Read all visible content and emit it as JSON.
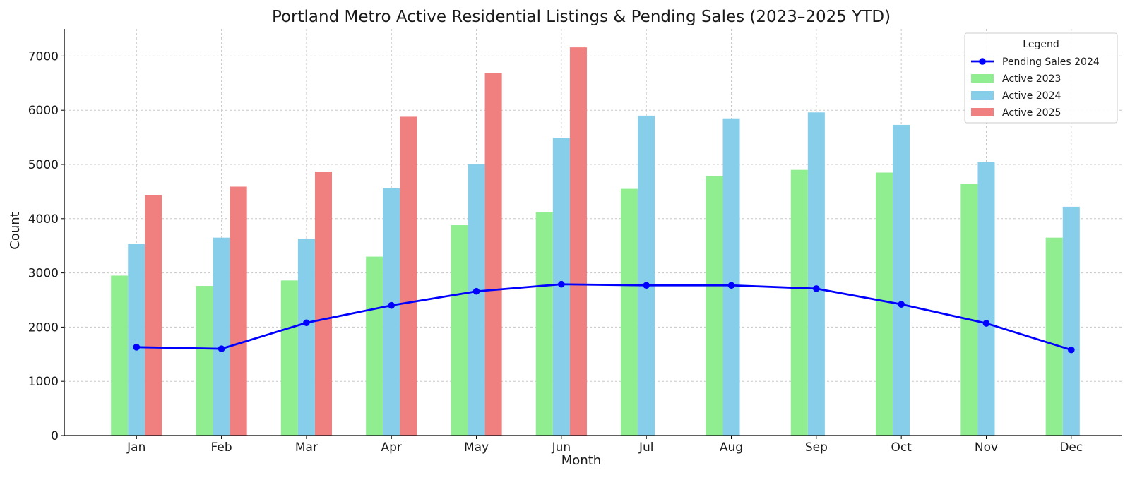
{
  "chart_data": {
    "type": "bar",
    "title": "Portland Metro Active Residential Listings & Pending Sales (2023–2025 YTD)",
    "xlabel": "Month",
    "ylabel": "Count",
    "ylim": [
      0,
      7500
    ],
    "yticks": [
      0,
      1000,
      2000,
      3000,
      4000,
      5000,
      6000,
      7000
    ],
    "grid": true,
    "legend": {
      "title": "Legend",
      "placement": "top-right"
    },
    "categories": [
      "Jan",
      "Feb",
      "Mar",
      "Apr",
      "May",
      "Jun",
      "Jul",
      "Aug",
      "Sep",
      "Oct",
      "Nov",
      "Dec"
    ],
    "series": [
      {
        "name": "Active 2023",
        "kind": "bar",
        "color": "#90ee90",
        "values": [
          2950,
          2760,
          2860,
          3300,
          3880,
          4120,
          4550,
          4780,
          4900,
          4850,
          4640,
          3650
        ]
      },
      {
        "name": "Active 2024",
        "kind": "bar",
        "color": "#87ceeb",
        "values": [
          3530,
          3650,
          3630,
          4560,
          5010,
          5490,
          5900,
          5850,
          5960,
          5730,
          5040,
          4220
        ]
      },
      {
        "name": "Active 2025",
        "kind": "bar",
        "color": "#f08080",
        "values": [
          4440,
          4590,
          4870,
          5880,
          6680,
          7160,
          null,
          null,
          null,
          null,
          null,
          null
        ]
      },
      {
        "name": "Pending Sales 2024",
        "kind": "line",
        "color": "#0000ff",
        "values": [
          1630,
          1600,
          2080,
          2400,
          2660,
          2790,
          2770,
          2770,
          2710,
          2420,
          2070,
          1580
        ]
      }
    ]
  }
}
